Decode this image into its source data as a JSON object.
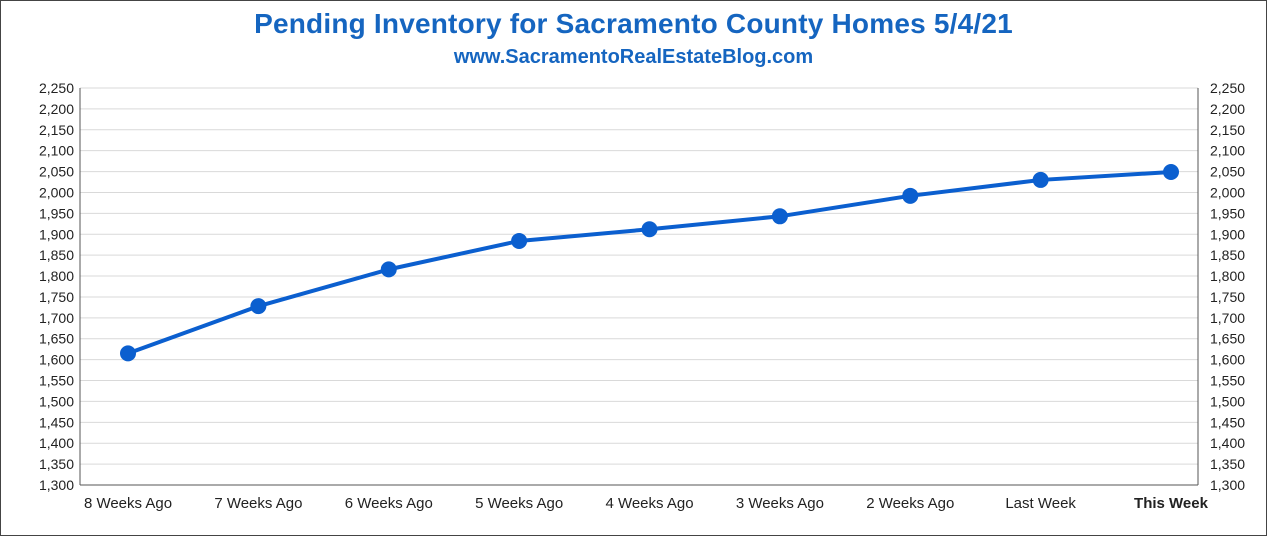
{
  "colors": {
    "accent": "#1565c0",
    "line": "#0b5fcf",
    "grid": "#d9d9d9",
    "axis": "#555555"
  },
  "chart_data": {
    "type": "line",
    "title": "Pending Inventory for Sacramento County Homes 5/4/21",
    "subtitle": "www.SacramentoRealEstateBlog.com",
    "categories": [
      "8 Weeks Ago",
      "7 Weeks Ago",
      "6 Weeks Ago",
      "5 Weeks Ago",
      "4 Weeks Ago",
      "3 Weeks Ago",
      "2 Weeks Ago",
      "Last Week",
      "This Week"
    ],
    "highlight_category": "This Week",
    "values": [
      1615,
      1728,
      1816,
      1884,
      1912,
      1943,
      1992,
      2030,
      2049
    ],
    "ylim": [
      1300,
      2250
    ],
    "ytick_step": 50,
    "y_axes": "left-and-right",
    "grid": true,
    "legend": "none"
  }
}
